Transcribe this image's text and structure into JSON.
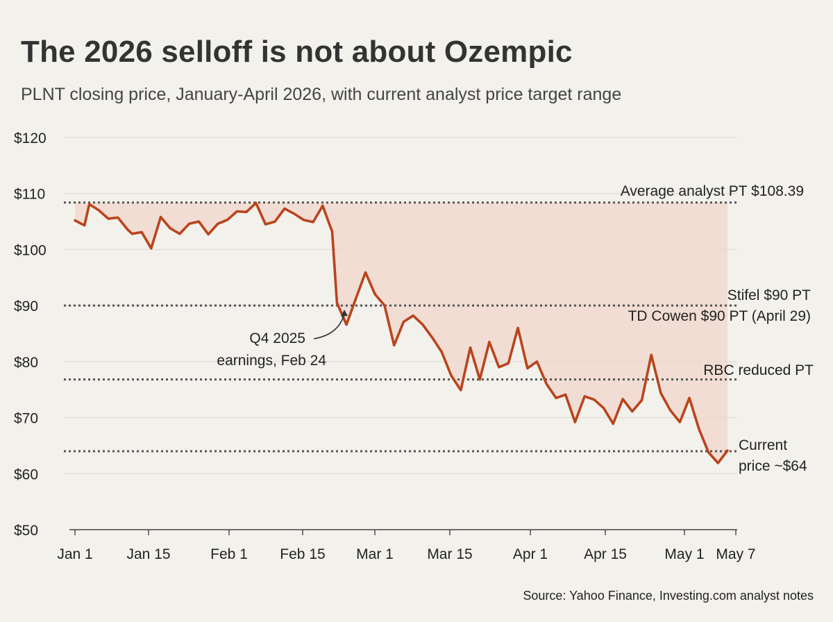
{
  "title": "The 2026 selloff is not about Ozempic",
  "subtitle": "PLNT closing price, January-April 2026, with current analyst price target range",
  "source": "Source: Yahoo Finance, Investing.com analyst notes",
  "colors": {
    "background": "#f3f1ec",
    "line": "#b9441c",
    "shade": "#f0d6cb",
    "reference": "#555555",
    "grid": "#dddbd6"
  },
  "chart_data": {
    "type": "line",
    "title": "The 2026 selloff is not about Ozempic",
    "subtitle": "PLNT closing price, January-April 2026, with current analyst price target range",
    "ylim": [
      50,
      120
    ],
    "y_ticks": [
      {
        "value": 120,
        "label": "$120"
      },
      {
        "value": 110,
        "label": "$110"
      },
      {
        "value": 100,
        "label": "$100"
      },
      {
        "value": 90,
        "label": "$90"
      },
      {
        "value": 80,
        "label": "$80"
      },
      {
        "value": 70,
        "label": "$70"
      },
      {
        "value": 60,
        "label": "$60"
      },
      {
        "value": 50,
        "label": "$50"
      }
    ],
    "x_ticks": [
      {
        "date": "2026-01-01",
        "label": "Jan 1"
      },
      {
        "date": "2026-01-15",
        "label": "Jan 15"
      },
      {
        "date": "2026-02-01",
        "label": "Feb 1"
      },
      {
        "date": "2026-02-15",
        "label": "Feb 15"
      },
      {
        "date": "2026-03-01",
        "label": "Mar 1"
      },
      {
        "date": "2026-03-15",
        "label": "Mar 15"
      },
      {
        "date": "2026-04-01",
        "label": "Apr 1"
      },
      {
        "date": "2026-04-15",
        "label": "Apr 15"
      },
      {
        "date": "2026-05-01",
        "label": "May 1"
      },
      {
        "date": "2026-05-07",
        "label": "May 7"
      }
    ],
    "grid": true,
    "shaded_region": {
      "upper": 108.39,
      "from": "2026-01-01",
      "to": "2026-05-07"
    },
    "reference_lines": [
      {
        "value": 108.39,
        "label_lines": [
          "Average analyst PT $108.39"
        ],
        "style": "dotted"
      },
      {
        "value": 90,
        "label_lines": [
          "Stifel $90 PT",
          "TD Cowen $90 PT (April 29)"
        ],
        "style": "dotted"
      },
      {
        "value": 76.8,
        "label_lines": [
          "RBC reduced PT"
        ],
        "style": "dotted"
      },
      {
        "value": 64,
        "label_lines": [
          "Current",
          "price ~$64"
        ],
        "style": "dotted"
      }
    ],
    "annotation": {
      "text_lines": [
        "Q4 2025",
        "earnings, Feb 24"
      ],
      "date": "2026-02-24",
      "value": 90.5
    },
    "series": [
      {
        "points": [
          [
            "2026-01-01",
            105.2
          ],
          [
            "2026-01-03",
            104.3
          ],
          [
            "2026-01-04",
            108.1
          ],
          [
            "2026-01-06",
            107.0
          ],
          [
            "2026-01-08",
            105.5
          ],
          [
            "2026-01-10",
            105.7
          ],
          [
            "2026-01-12",
            103.6
          ],
          [
            "2026-01-13",
            102.8
          ],
          [
            "2026-01-15",
            103.1
          ],
          [
            "2026-01-17",
            100.2
          ],
          [
            "2026-01-19",
            105.8
          ],
          [
            "2026-01-21",
            103.8
          ],
          [
            "2026-01-23",
            102.8
          ],
          [
            "2026-01-25",
            104.6
          ],
          [
            "2026-01-27",
            105.0
          ],
          [
            "2026-01-29",
            102.7
          ],
          [
            "2026-01-31",
            104.6
          ],
          [
            "2026-02-02",
            105.3
          ],
          [
            "2026-02-04",
            106.8
          ],
          [
            "2026-02-06",
            106.7
          ],
          [
            "2026-02-08",
            108.3
          ],
          [
            "2026-02-10",
            104.5
          ],
          [
            "2026-02-12",
            105.0
          ],
          [
            "2026-02-14",
            107.3
          ],
          [
            "2026-02-16",
            106.4
          ],
          [
            "2026-02-18",
            105.3
          ],
          [
            "2026-02-20",
            104.9
          ],
          [
            "2026-02-22",
            107.8
          ],
          [
            "2026-02-24",
            103.2
          ],
          [
            "2026-02-25",
            90.5
          ],
          [
            "2026-02-27",
            86.6
          ],
          [
            "2026-03-01",
            91.3
          ],
          [
            "2026-03-03",
            95.9
          ],
          [
            "2026-03-05",
            92.0
          ],
          [
            "2026-03-07",
            90.0
          ],
          [
            "2026-03-09",
            82.9
          ],
          [
            "2026-03-11",
            87.1
          ],
          [
            "2026-03-13",
            88.2
          ],
          [
            "2026-03-15",
            86.6
          ],
          [
            "2026-03-17",
            84.3
          ],
          [
            "2026-03-19",
            81.7
          ],
          [
            "2026-03-21",
            77.5
          ],
          [
            "2026-03-23",
            74.9
          ],
          [
            "2026-03-25",
            82.5
          ],
          [
            "2026-03-27",
            76.8
          ],
          [
            "2026-03-29",
            83.5
          ],
          [
            "2026-03-31",
            79.0
          ],
          [
            "2026-04-02",
            79.7
          ],
          [
            "2026-04-04",
            86.0
          ],
          [
            "2026-04-06",
            78.8
          ],
          [
            "2026-04-08",
            80.0
          ],
          [
            "2026-04-10",
            76.0
          ],
          [
            "2026-04-12",
            73.5
          ],
          [
            "2026-04-14",
            74.1
          ],
          [
            "2026-04-16",
            69.2
          ],
          [
            "2026-04-18",
            73.8
          ],
          [
            "2026-04-20",
            73.2
          ],
          [
            "2026-04-22",
            71.7
          ],
          [
            "2026-04-24",
            68.9
          ],
          [
            "2026-04-26",
            73.3
          ],
          [
            "2026-04-28",
            71.1
          ],
          [
            "2026-04-30",
            73.1
          ],
          [
            "2026-05-02",
            81.2
          ],
          [
            "2026-05-04",
            74.4
          ],
          [
            "2026-05-06",
            71.3
          ],
          [
            "2026-05-08",
            69.2
          ],
          [
            "2026-05-10",
            73.5
          ],
          [
            "2026-05-12",
            68.0
          ],
          [
            "2026-05-14",
            63.8
          ],
          [
            "2026-05-16",
            61.9
          ],
          [
            "2026-05-18",
            64.1
          ]
        ]
      }
    ]
  }
}
